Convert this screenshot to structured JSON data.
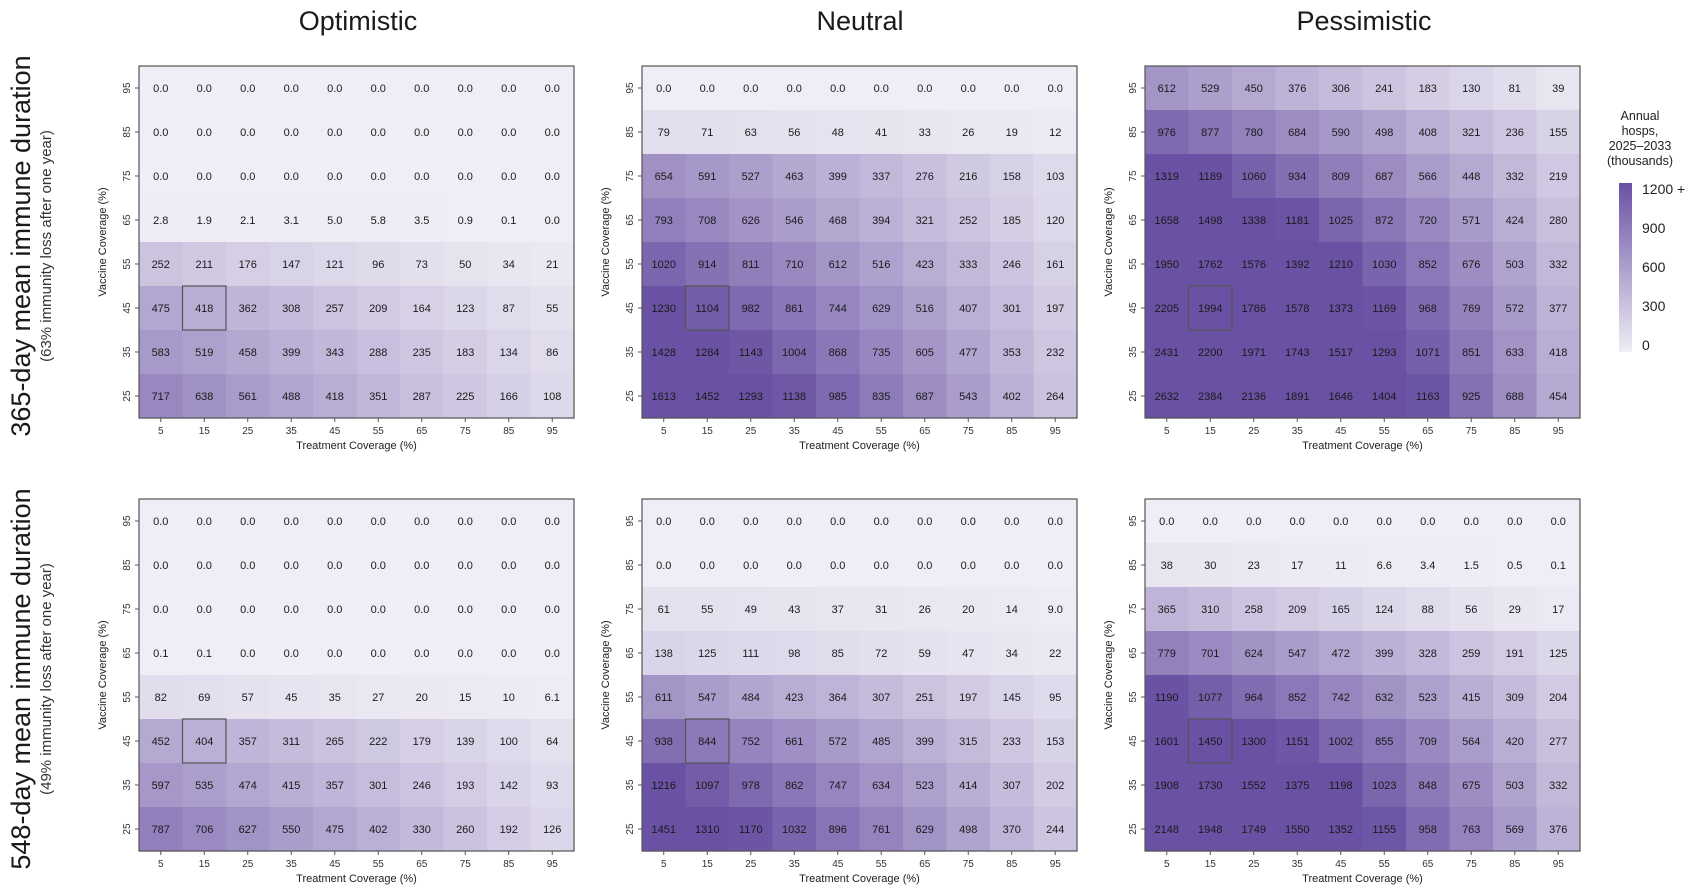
{
  "chart_data": {
    "type": "heatmap",
    "column_titles": [
      "Optimistic",
      "Neutral",
      "Pessimistic"
    ],
    "rows": [
      {
        "title": "365-day mean immune duration",
        "subtitle": "(63% immunity loss after one year)"
      },
      {
        "title": "548-day mean immune duration",
        "subtitle": "(49% immunity loss after one year)"
      }
    ],
    "xlabel": "Treatment Coverage (%)",
    "ylabel": "Vaccine Coverage (%)",
    "x_ticks": [
      "5",
      "15",
      "25",
      "35",
      "45",
      "55",
      "65",
      "75",
      "85",
      "95"
    ],
    "y_ticks": [
      "95",
      "85",
      "75",
      "65",
      "55",
      "45",
      "35",
      "25"
    ],
    "highlight_cell": {
      "treatment": "15",
      "vaccine": "45"
    },
    "legend": {
      "title_lines": [
        "Annual",
        "hosps,",
        "2025–2033",
        "(thousands)"
      ],
      "ticks": [
        "1200 +",
        "900",
        "600",
        "300",
        "0"
      ],
      "range": [
        0,
        1200
      ],
      "color_low": "#efedf5",
      "color_high": "#6a51a3"
    },
    "panels": [
      {
        "row": 0,
        "col": 0,
        "values": [
          [
            "0.0",
            "0.0",
            "0.0",
            "0.0",
            "0.0",
            "0.0",
            "0.0",
            "0.0",
            "0.0",
            "0.0"
          ],
          [
            "0.0",
            "0.0",
            "0.0",
            "0.0",
            "0.0",
            "0.0",
            "0.0",
            "0.0",
            "0.0",
            "0.0"
          ],
          [
            "0.0",
            "0.0",
            "0.0",
            "0.0",
            "0.0",
            "0.0",
            "0.0",
            "0.0",
            "0.0",
            "0.0"
          ],
          [
            "2.8",
            "1.9",
            "2.1",
            "3.1",
            "5.0",
            "5.8",
            "3.5",
            "0.9",
            "0.1",
            "0.0"
          ],
          [
            "252",
            "211",
            "176",
            "147",
            "121",
            "96",
            "73",
            "50",
            "34",
            "21"
          ],
          [
            "475",
            "418",
            "362",
            "308",
            "257",
            "209",
            "164",
            "123",
            "87",
            "55"
          ],
          [
            "583",
            "519",
            "458",
            "399",
            "343",
            "288",
            "235",
            "183",
            "134",
            "86"
          ],
          [
            "717",
            "638",
            "561",
            "488",
            "418",
            "351",
            "287",
            "225",
            "166",
            "108"
          ]
        ]
      },
      {
        "row": 0,
        "col": 1,
        "values": [
          [
            "0.0",
            "0.0",
            "0.0",
            "0.0",
            "0.0",
            "0.0",
            "0.0",
            "0.0",
            "0.0",
            "0.0"
          ],
          [
            "79",
            "71",
            "63",
            "56",
            "48",
            "41",
            "33",
            "26",
            "19",
            "12"
          ],
          [
            "654",
            "591",
            "527",
            "463",
            "399",
            "337",
            "276",
            "216",
            "158",
            "103"
          ],
          [
            "793",
            "708",
            "626",
            "546",
            "468",
            "394",
            "321",
            "252",
            "185",
            "120"
          ],
          [
            "1020",
            "914",
            "811",
            "710",
            "612",
            "516",
            "423",
            "333",
            "246",
            "161"
          ],
          [
            "1230",
            "1104",
            "982",
            "861",
            "744",
            "629",
            "516",
            "407",
            "301",
            "197"
          ],
          [
            "1428",
            "1284",
            "1143",
            "1004",
            "868",
            "735",
            "605",
            "477",
            "353",
            "232"
          ],
          [
            "1613",
            "1452",
            "1293",
            "1138",
            "985",
            "835",
            "687",
            "543",
            "402",
            "264"
          ]
        ]
      },
      {
        "row": 0,
        "col": 2,
        "values": [
          [
            "612",
            "529",
            "450",
            "376",
            "306",
            "241",
            "183",
            "130",
            "81",
            "39"
          ],
          [
            "976",
            "877",
            "780",
            "684",
            "590",
            "498",
            "408",
            "321",
            "236",
            "155"
          ],
          [
            "1319",
            "1189",
            "1060",
            "934",
            "809",
            "687",
            "566",
            "448",
            "332",
            "219"
          ],
          [
            "1658",
            "1498",
            "1338",
            "1181",
            "1025",
            "872",
            "720",
            "571",
            "424",
            "280"
          ],
          [
            "1950",
            "1762",
            "1576",
            "1392",
            "1210",
            "1030",
            "852",
            "676",
            "503",
            "332"
          ],
          [
            "2205",
            "1994",
            "1786",
            "1578",
            "1373",
            "1169",
            "968",
            "769",
            "572",
            "377"
          ],
          [
            "2431",
            "2200",
            "1971",
            "1743",
            "1517",
            "1293",
            "1071",
            "851",
            "633",
            "418"
          ],
          [
            "2632",
            "2384",
            "2136",
            "1891",
            "1646",
            "1404",
            "1163",
            "925",
            "688",
            "454"
          ]
        ]
      },
      {
        "row": 1,
        "col": 0,
        "values": [
          [
            "0.0",
            "0.0",
            "0.0",
            "0.0",
            "0.0",
            "0.0",
            "0.0",
            "0.0",
            "0.0",
            "0.0"
          ],
          [
            "0.0",
            "0.0",
            "0.0",
            "0.0",
            "0.0",
            "0.0",
            "0.0",
            "0.0",
            "0.0",
            "0.0"
          ],
          [
            "0.0",
            "0.0",
            "0.0",
            "0.0",
            "0.0",
            "0.0",
            "0.0",
            "0.0",
            "0.0",
            "0.0"
          ],
          [
            "0.1",
            "0.1",
            "0.0",
            "0.0",
            "0.0",
            "0.0",
            "0.0",
            "0.0",
            "0.0",
            "0.0"
          ],
          [
            "82",
            "69",
            "57",
            "45",
            "35",
            "27",
            "20",
            "15",
            "10",
            "6.1"
          ],
          [
            "452",
            "404",
            "357",
            "311",
            "265",
            "222",
            "179",
            "139",
            "100",
            "64"
          ],
          [
            "597",
            "535",
            "474",
            "415",
            "357",
            "301",
            "246",
            "193",
            "142",
            "93"
          ],
          [
            "787",
            "706",
            "627",
            "550",
            "475",
            "402",
            "330",
            "260",
            "192",
            "126"
          ]
        ]
      },
      {
        "row": 1,
        "col": 1,
        "values": [
          [
            "0.0",
            "0.0",
            "0.0",
            "0.0",
            "0.0",
            "0.0",
            "0.0",
            "0.0",
            "0.0",
            "0.0"
          ],
          [
            "0.0",
            "0.0",
            "0.0",
            "0.0",
            "0.0",
            "0.0",
            "0.0",
            "0.0",
            "0.0",
            "0.0"
          ],
          [
            "61",
            "55",
            "49",
            "43",
            "37",
            "31",
            "26",
            "20",
            "14",
            "9.0"
          ],
          [
            "138",
            "125",
            "111",
            "98",
            "85",
            "72",
            "59",
            "47",
            "34",
            "22"
          ],
          [
            "611",
            "547",
            "484",
            "423",
            "364",
            "307",
            "251",
            "197",
            "145",
            "95"
          ],
          [
            "938",
            "844",
            "752",
            "661",
            "572",
            "485",
            "399",
            "315",
            "233",
            "153"
          ],
          [
            "1216",
            "1097",
            "978",
            "862",
            "747",
            "634",
            "523",
            "414",
            "307",
            "202"
          ],
          [
            "1451",
            "1310",
            "1170",
            "1032",
            "896",
            "761",
            "629",
            "498",
            "370",
            "244"
          ]
        ]
      },
      {
        "row": 1,
        "col": 2,
        "values": [
          [
            "0.0",
            "0.0",
            "0.0",
            "0.0",
            "0.0",
            "0.0",
            "0.0",
            "0.0",
            "0.0",
            "0.0"
          ],
          [
            "38",
            "30",
            "23",
            "17",
            "11",
            "6.6",
            "3.4",
            "1.5",
            "0.5",
            "0.1"
          ],
          [
            "365",
            "310",
            "258",
            "209",
            "165",
            "124",
            "88",
            "56",
            "29",
            "17"
          ],
          [
            "779",
            "701",
            "624",
            "547",
            "472",
            "399",
            "328",
            "259",
            "191",
            "125"
          ],
          [
            "1190",
            "1077",
            "964",
            "852",
            "742",
            "632",
            "523",
            "415",
            "309",
            "204"
          ],
          [
            "1601",
            "1450",
            "1300",
            "1151",
            "1002",
            "855",
            "709",
            "564",
            "420",
            "277"
          ],
          [
            "1908",
            "1730",
            "1552",
            "1375",
            "1198",
            "1023",
            "848",
            "675",
            "503",
            "332"
          ],
          [
            "2148",
            "1948",
            "1749",
            "1550",
            "1352",
            "1155",
            "958",
            "763",
            "569",
            "376"
          ]
        ]
      }
    ]
  }
}
